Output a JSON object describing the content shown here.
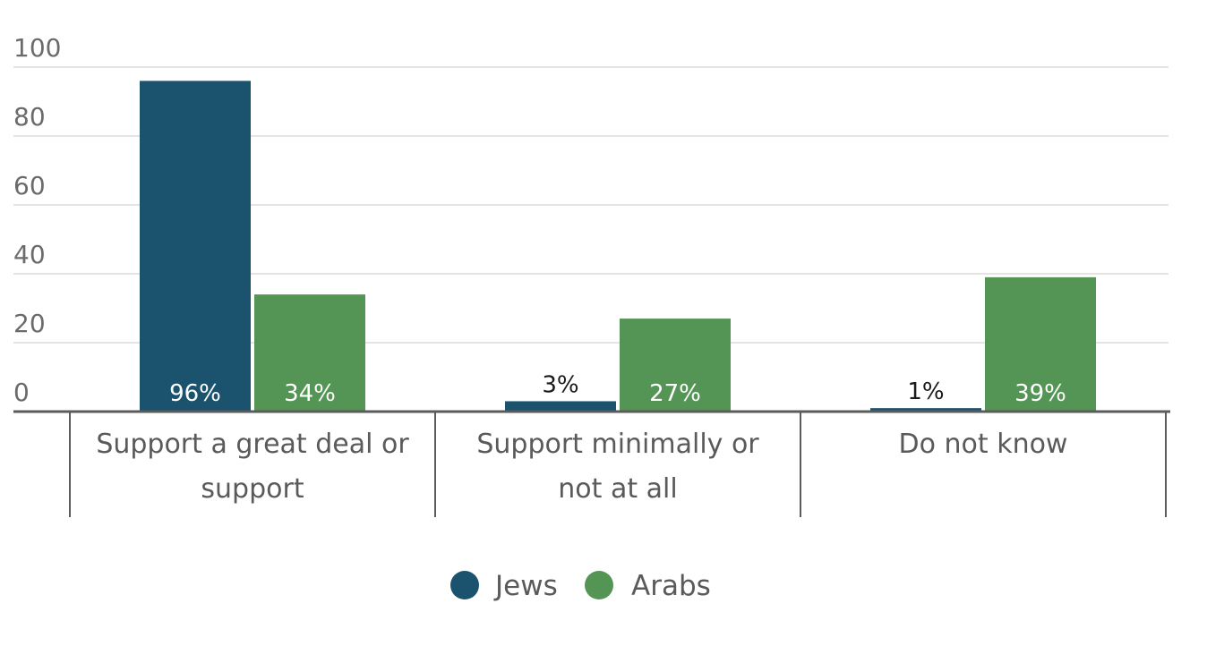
{
  "chart_data": {
    "type": "bar",
    "categories": [
      [
        "Support a great deal or",
        "support"
      ],
      [
        "Support minimally or",
        "not at all"
      ],
      [
        "Do not know"
      ]
    ],
    "series": [
      {
        "name": "Jews",
        "color": "#1b536e",
        "values": [
          96,
          3,
          1
        ],
        "labels": [
          "96%",
          "3%",
          "1%"
        ]
      },
      {
        "name": "Arabs",
        "color": "#549556",
        "values": [
          34,
          27,
          39
        ],
        "labels": [
          "34%",
          "27%",
          "39%"
        ]
      }
    ],
    "ylim": [
      0,
      100
    ],
    "yticks": [
      0,
      20,
      40,
      60,
      80,
      100
    ],
    "grid": true,
    "legend_position": "bottom-center",
    "title": "",
    "xlabel": "",
    "ylabel": ""
  }
}
